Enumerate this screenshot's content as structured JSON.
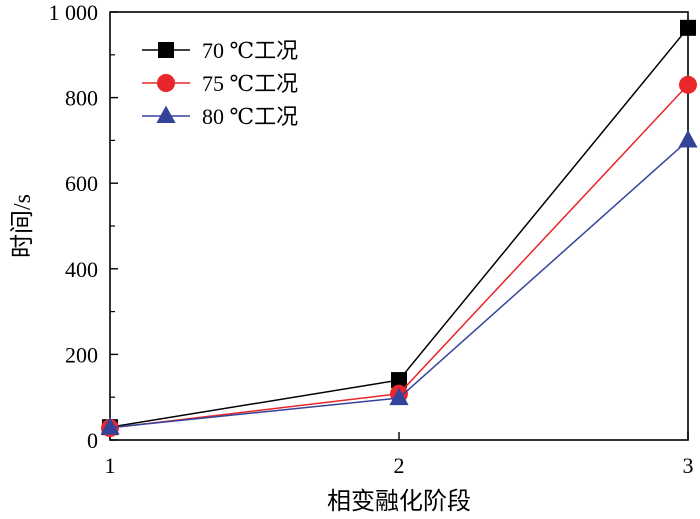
{
  "chart_data": {
    "type": "line",
    "xlabel": "相变融化阶段",
    "ylabel": "时间/s",
    "x": [
      1,
      2,
      3
    ],
    "xlim": [
      1,
      3
    ],
    "ylim": [
      0,
      1000
    ],
    "x_ticks": [
      "1",
      "2",
      "3"
    ],
    "y_ticks": [
      "0",
      "200",
      "400",
      "600",
      "800",
      "1 000"
    ],
    "y_tick_values": [
      0,
      200,
      400,
      600,
      800,
      1000
    ],
    "grid": false,
    "legend_position": "top-left",
    "series": [
      {
        "name": "70 ℃工况",
        "values": [
          30,
          140,
          963
        ],
        "color": "#000000",
        "marker": "square"
      },
      {
        "name": "75 ℃工况",
        "values": [
          28,
          108,
          830
        ],
        "color": "#e8262b",
        "marker": "circle"
      },
      {
        "name": "80 ℃工况",
        "values": [
          29,
          98,
          700
        ],
        "color": "#34439a",
        "marker": "triangle"
      }
    ]
  }
}
